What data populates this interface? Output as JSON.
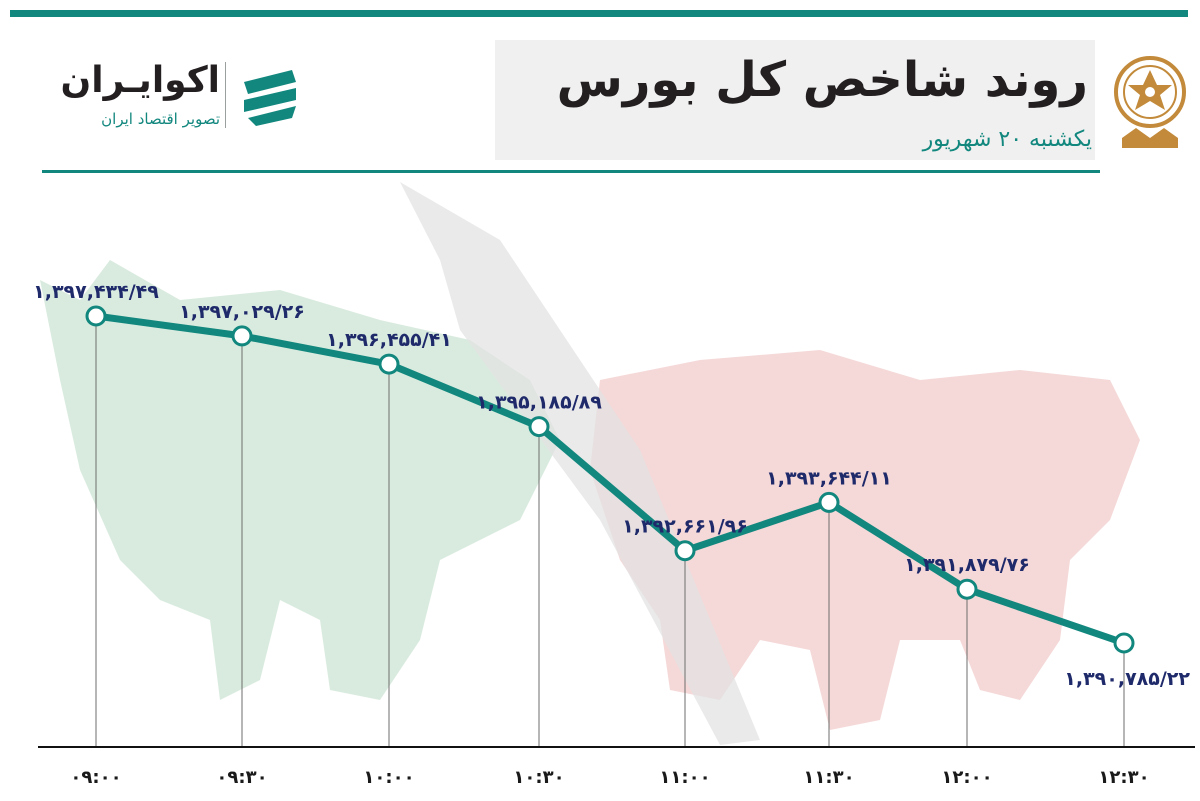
{
  "header": {
    "title": "روند شاخص کل بورس",
    "subtitle": "یکشنبه ۲۰ شهریور"
  },
  "brand": {
    "name": "اکوایـران",
    "tagline": "تصویر اقتصاد ایران"
  },
  "colors": {
    "accent": "#12877e",
    "label": "#1f2a6b",
    "bull_silhouette": "#d5e9dc",
    "bear_silhouette": "#f4d4d4",
    "arrow_silhouette": "#e3e3e3",
    "emblem": "#c28a3a"
  },
  "chart_data": {
    "type": "line",
    "categories": [
      "۰۹:۰۰",
      "۰۹:۳۰",
      "۱۰:۰۰",
      "۱۰:۳۰",
      "۱۱:۰۰",
      "۱۱:۳۰",
      "۱۲:۰۰",
      "۱۲:۳۰"
    ],
    "values": [
      1397434.49,
      1397029.26,
      1396455.41,
      1395185.89,
      1392661.96,
      1393644.11,
      1391879.76,
      1390785.22
    ],
    "value_labels": [
      "۱,۳۹۷,۴۳۴/۴۹",
      "۱,۳۹۷,۰۲۹/۲۶",
      "۱,۳۹۶,۴۵۵/۴۱",
      "۱,۳۹۵,۱۸۵/۸۹",
      "۱,۳۹۲,۶۶۱/۹۶",
      "۱,۳۹۳,۶۴۴/۱۱",
      "۱,۳۹۱,۸۷۹/۷۶",
      "۱,۳۹۰,۷۸۵/۲۲"
    ],
    "x_axis": "time",
    "grid": "vertical drop lines",
    "legend": "none"
  }
}
